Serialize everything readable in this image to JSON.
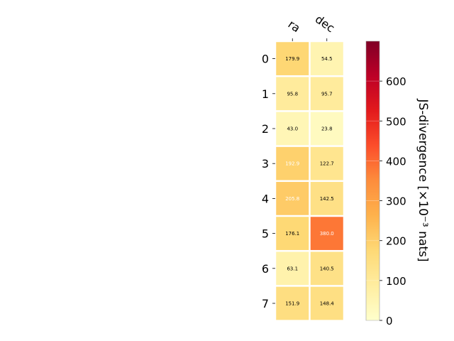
{
  "chart_data": {
    "type": "heatmap",
    "columns": [
      "ra",
      "dec"
    ],
    "rows": [
      "0",
      "1",
      "2",
      "3",
      "4",
      "5",
      "6",
      "7"
    ],
    "values": [
      [
        179.9,
        54.5
      ],
      [
        95.8,
        95.7
      ],
      [
        43.0,
        23.8
      ],
      [
        192.9,
        122.7
      ],
      [
        205.8,
        142.5
      ],
      [
        176.1,
        380.0
      ],
      [
        63.1,
        140.5
      ],
      [
        151.9,
        148.4
      ]
    ],
    "cell_labels": [
      [
        "179.9",
        "54.5"
      ],
      [
        "95.8",
        "95.7"
      ],
      [
        "43.0",
        "23.8"
      ],
      [
        "192.9",
        "122.7"
      ],
      [
        "205.8",
        "142.5"
      ],
      [
        "176.1",
        "380.0"
      ],
      [
        "63.1",
        "140.5"
      ],
      [
        "151.9",
        "148.4"
      ]
    ],
    "colorbar": {
      "label": "JS-divergence [×10⁻³ nats]",
      "range": [
        0,
        700
      ],
      "ticks": [
        "0",
        "100",
        "200",
        "300",
        "400",
        "500",
        "600"
      ],
      "colormap": "YlOrRd"
    }
  }
}
